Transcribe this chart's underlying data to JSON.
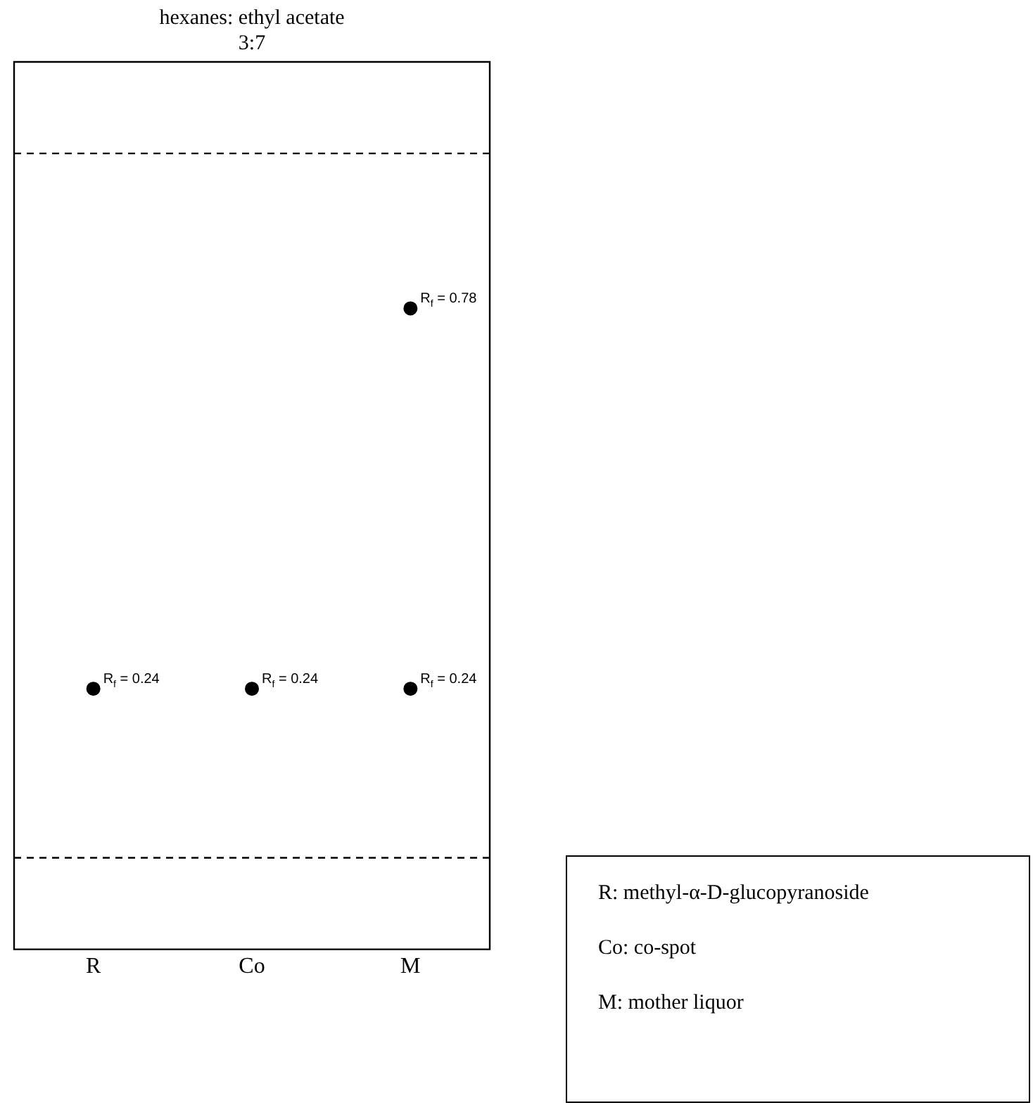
{
  "chart_data": {
    "type": "scatter",
    "title": "hexanes: ethyl acetate",
    "subtitle": "3:7",
    "categories": [
      "R",
      "Co",
      "M"
    ],
    "series": [
      {
        "x": [
          "R",
          "Co",
          "M",
          "M"
        ],
        "values": [
          0.24,
          0.24,
          0.24,
          0.78
        ],
        "color": "#000000",
        "value_labels": [
          "R$_{f}$ = 0.24",
          "R$_{f}$ = 0.24",
          "R$_{f}$ = 0.24",
          "R$_{f}$ = 0.78"
        ]
      }
    ],
    "ylim": [
      -0.13,
      1.13
    ],
    "tick_labels": "x",
    "grid": false,
    "legend": false,
    "marker": "circle",
    "ref_lines": [
      {
        "axis": "y",
        "value": 0,
        "line_style": "dashed",
        "color": "#000000"
      },
      {
        "axis": "y",
        "value": 1,
        "line_style": "dashed",
        "color": "#000000"
      }
    ],
    "annotations": [
      "R: methyl-α-D-glucopyranoside",
      "Co: co-spot",
      "M: mother liquor"
    ]
  }
}
